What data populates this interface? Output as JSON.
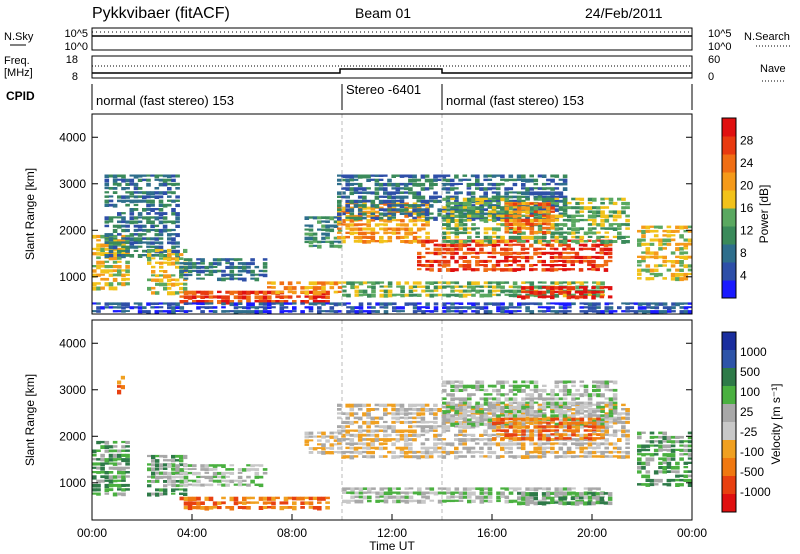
{
  "header": {
    "station": "Pykkvibaer (fitACF)",
    "beam": "Beam 01",
    "date": "24/Feb/2011"
  },
  "nsky_panel": {
    "left_label": "N.Sky",
    "left_ticks": [
      "10^5",
      "10^0"
    ],
    "right_ticks": [
      "10^5",
      "10^0"
    ],
    "right_label": "N.Search"
  },
  "freq_panel": {
    "left_label_line1": "Freq.",
    "left_label_line2": "[MHz]",
    "left_ticks": [
      "18",
      "8"
    ],
    "right_ticks": [
      "60",
      "0"
    ],
    "right_label": "Nave"
  },
  "cpid_panel": {
    "label": "CPID",
    "segments": [
      {
        "start_hour": 0,
        "end_hour": 10,
        "name": "normal (fast stereo) 153"
      },
      {
        "start_hour": 10,
        "end_hour": 14,
        "name": "Stereo -6401"
      },
      {
        "start_hour": 14,
        "end_hour": 24,
        "name": "normal (fast stereo) 153"
      }
    ]
  },
  "colors": {
    "power_scale": [
      "#1a1aff",
      "#2e4fa8",
      "#2e6e8c",
      "#3a8a5a",
      "#5aa860",
      "#f2c21a",
      "#f59a1a",
      "#f06e14",
      "#e83a10",
      "#e01010"
    ],
    "velocity_scale": [
      "#1a2e9e",
      "#2e54a8",
      "#2e7a48",
      "#4ab040",
      "#a8a8a8",
      "#c8c8c8",
      "#f0a020",
      "#f07810",
      "#e84010",
      "#e01010"
    ]
  },
  "chart_data": [
    {
      "type": "heatmap",
      "name": "power",
      "xlabel": "",
      "ylabel": "Slant Range [km]",
      "x_range": [
        0,
        24
      ],
      "y_range": [
        200,
        4500
      ],
      "y_ticks": [
        "1000",
        "2000",
        "3000",
        "4000"
      ],
      "colorbar_label": "Power [dB]",
      "colorbar_ticks": [
        "4",
        "8",
        "12",
        "16",
        "20",
        "24",
        "28"
      ],
      "features": [
        {
          "t0": 0.0,
          "t1": 1.5,
          "r0": 700,
          "r1": 1900,
          "level": 5
        },
        {
          "t0": 0.5,
          "t1": 3.5,
          "r0": 1400,
          "r1": 3200,
          "level": 2
        },
        {
          "t0": 2.2,
          "t1": 3.8,
          "r0": 600,
          "r1": 1600,
          "level": 5
        },
        {
          "t0": 3.5,
          "t1": 7.0,
          "r0": 900,
          "r1": 1400,
          "level": 2
        },
        {
          "t0": 3.5,
          "t1": 9.5,
          "r0": 400,
          "r1": 700,
          "level": 8
        },
        {
          "t0": 7.0,
          "t1": 10.0,
          "r0": 600,
          "r1": 900,
          "level": 6
        },
        {
          "t0": 8.5,
          "t1": 10.0,
          "r0": 1600,
          "r1": 2300,
          "level": 3
        },
        {
          "t0": 9.8,
          "t1": 13.5,
          "r0": 1700,
          "r1": 2600,
          "level": 6
        },
        {
          "t0": 9.8,
          "t1": 19.0,
          "r0": 2200,
          "r1": 3200,
          "level": 2
        },
        {
          "t0": 10.0,
          "t1": 20.5,
          "r0": 550,
          "r1": 900,
          "level": 4
        },
        {
          "t0": 13.0,
          "t1": 20.8,
          "r0": 1100,
          "r1": 1800,
          "level": 8
        },
        {
          "t0": 14.0,
          "t1": 21.5,
          "r0": 1700,
          "r1": 2700,
          "level": 4
        },
        {
          "t0": 16.5,
          "t1": 18.5,
          "r0": 1900,
          "r1": 2600,
          "level": 7
        },
        {
          "t0": 17.0,
          "t1": 20.8,
          "r0": 500,
          "r1": 800,
          "level": 9
        },
        {
          "t0": 21.8,
          "t1": 24.0,
          "r0": 900,
          "r1": 2100,
          "level": 5
        },
        {
          "t0": 0.0,
          "t1": 24.0,
          "r0": 200,
          "r1": 450,
          "level": 1
        }
      ]
    },
    {
      "type": "heatmap",
      "name": "velocity",
      "xlabel": "Time UT",
      "ylabel": "Slant Range [km]",
      "x_range": [
        0,
        24
      ],
      "y_range": [
        200,
        4500
      ],
      "x_ticks": [
        "00:00",
        "04:00",
        "08:00",
        "12:00",
        "16:00",
        "20:00",
        "00:00"
      ],
      "y_ticks": [
        "1000",
        "2000",
        "3000",
        "4000"
      ],
      "colorbar_label": "Velocity [m s⁻¹]",
      "colorbar_ticks": [
        "1000",
        "500",
        "100",
        "25",
        "-25",
        "-100",
        "-500",
        "-1000"
      ],
      "features": [
        {
          "t0": 0.0,
          "t1": 1.5,
          "r0": 700,
          "r1": 1900,
          "level": 3
        },
        {
          "t0": 1.0,
          "t1": 1.3,
          "r0": 2900,
          "r1": 3300,
          "level": 7
        },
        {
          "t0": 2.2,
          "t1": 3.8,
          "r0": 700,
          "r1": 1600,
          "level": 3
        },
        {
          "t0": 3.0,
          "t1": 7.0,
          "r0": 900,
          "r1": 1400,
          "level": 4
        },
        {
          "t0": 3.5,
          "t1": 9.5,
          "r0": 400,
          "r1": 700,
          "level": 7
        },
        {
          "t0": 8.5,
          "t1": 10.0,
          "r0": 1600,
          "r1": 2100,
          "level": 5
        },
        {
          "t0": 9.8,
          "t1": 21.5,
          "r0": 1500,
          "r1": 2700,
          "level": 5
        },
        {
          "t0": 10.0,
          "t1": 20.5,
          "r0": 550,
          "r1": 900,
          "level": 4
        },
        {
          "t0": 14.0,
          "t1": 21.0,
          "r0": 2200,
          "r1": 3200,
          "level": 4
        },
        {
          "t0": 16.0,
          "t1": 20.5,
          "r0": 1900,
          "r1": 2400,
          "level": 7
        },
        {
          "t0": 17.0,
          "t1": 20.8,
          "r0": 500,
          "r1": 800,
          "level": 3
        },
        {
          "t0": 21.8,
          "t1": 24.0,
          "r0": 900,
          "r1": 2100,
          "level": 3
        }
      ]
    }
  ]
}
